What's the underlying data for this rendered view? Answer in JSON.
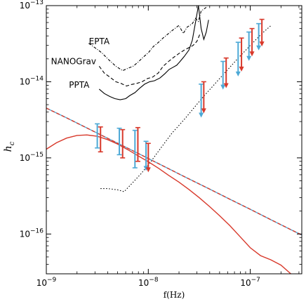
{
  "chart_data": {
    "type": "line",
    "xlabel": "f(Hz)",
    "ylabel": "h_c",
    "xscale": "log",
    "yscale": "log",
    "xlim": [
      1e-09,
      3.2e-07
    ],
    "ylim": [
      3e-17,
      1e-13
    ],
    "x_ticks": [
      {
        "value": 1e-09,
        "mantissa": "10",
        "exp": "−9"
      },
      {
        "value": 1e-08,
        "mantissa": "10",
        "exp": "−8"
      },
      {
        "value": 1e-07,
        "mantissa": "10",
        "exp": "−7"
      }
    ],
    "y_ticks": [
      {
        "value": 1e-16,
        "mantissa": "10",
        "exp": "−16"
      },
      {
        "value": 1e-15,
        "mantissa": "10",
        "exp": "−15"
      },
      {
        "value": 1e-14,
        "mantissa": "10",
        "exp": "−14"
      },
      {
        "value": 1e-13,
        "mantissa": "10",
        "exp": "−13"
      }
    ],
    "grid": false,
    "colors": {
      "blue": "#4da9d6",
      "red": "#d8392b",
      "black": "#000000"
    },
    "annotations": [
      {
        "text": "EPTA",
        "x": 3.3e-09,
        "y": 3.1e-14
      },
      {
        "text": "NANOGrav",
        "x": 1.85e-09,
        "y": 1.7e-14
      },
      {
        "text": "PPTA",
        "x": 2.1e-09,
        "y": 8.3e-15
      }
    ],
    "series": [
      {
        "style": "dash-dot",
        "color": "#000000",
        "x": [
          2.6e-09,
          3e-09,
          3.5e-09,
          4e-09,
          4.8e-09,
          5.6e-09,
          6.3e-09,
          7.1e-09,
          7.9e-09,
          8.9e-09,
          1e-08,
          1.12e-08,
          1.26e-08,
          1.41e-08,
          1.58e-08,
          1.78e-08,
          2e-08,
          2.2e-08,
          2.4e-08,
          2.7e-08,
          2.9e-08,
          3.1e-08,
          3.3e-08,
          3.7e-08
        ],
        "y": [
          3.2e-14,
          2.8e-14,
          2.4e-14,
          2e-14,
          1.6e-14,
          1.4e-14,
          1.5e-14,
          1.6e-14,
          1.8e-14,
          2.1e-14,
          2.4e-14,
          2.9e-14,
          3.3e-14,
          3.8e-14,
          4.3e-14,
          4.9e-14,
          5.5e-14,
          4.3e-14,
          5.2e-14,
          5.8e-14,
          6.8e-14,
          6.2e-14,
          8.5e-14,
          9.5e-14
        ]
      },
      {
        "style": "dashed",
        "color": "#000000",
        "x": [
          3.3e-09,
          3.7e-09,
          4.2e-09,
          4.8e-09,
          5.4e-09,
          6.1e-09,
          6.8e-09,
          7.7e-09,
          8.7e-09,
          9.8e-09,
          1.1e-08,
          1.25e-08,
          1.4e-08,
          1.58e-08,
          1.78e-08,
          2e-08,
          2.25e-08,
          2.5e-08,
          2.75e-08,
          3e-08,
          3.2e-08
        ],
        "y": [
          1.6e-14,
          1.3e-14,
          1.15e-14,
          1e-14,
          9.5e-15,
          8.8e-15,
          9.2e-15,
          9.5e-15,
          1e-14,
          1.1e-14,
          1.15e-14,
          1.3e-14,
          1.6e-14,
          1.85e-14,
          2.1e-14,
          2.35e-14,
          2.6e-14,
          2.8e-14,
          3e-14,
          3.4e-14,
          4.2e-14
        ]
      },
      {
        "style": "solid",
        "color": "#000000",
        "x": [
          3.3e-09,
          3.7e-09,
          4.2e-09,
          4.7e-09,
          5.3e-09,
          6e-09,
          6.6e-09,
          7.4e-09,
          8.2e-09,
          9.2e-09,
          1.03e-08,
          1.15e-08,
          1.3e-08,
          1.45e-08,
          1.6e-08,
          1.75e-08,
          1.9e-08,
          2.05e-08,
          2.25e-08,
          2.5e-08,
          2.7e-08,
          2.9e-08,
          3.1e-08,
          3.3e-08,
          3.5e-08,
          3.7e-08,
          3.9e-08
        ],
        "y": [
          8e-15,
          7e-15,
          6.4e-15,
          6e-15,
          5.8e-15,
          6e-15,
          6.6e-15,
          7.2e-15,
          8.2e-15,
          9.3e-15,
          1e-14,
          1.03e-14,
          1.12e-14,
          1.27e-14,
          1.45e-14,
          1.55e-14,
          1.65e-14,
          1.85e-14,
          2.15e-14,
          2.6e-14,
          3.5e-14,
          6e-14,
          1e-13,
          5e-14,
          3.6e-14,
          4.5e-14,
          6.5e-14
        ]
      },
      {
        "style": "dotted",
        "color": "#000000",
        "x": [
          3.4e-09,
          4e-09,
          5e-09,
          5.8e-09,
          7e-09,
          8.5e-09,
          1.05e-08,
          1.3e-08,
          1.7e-08,
          2.3e-08,
          3.3e-08,
          5e-08,
          7.5e-08,
          1e-07,
          1.3e-07,
          1.6e-07
        ],
        "y": [
          3.95e-16,
          3.95e-16,
          3.8e-16,
          3.6e-16,
          4.7e-16,
          6.2e-16,
          8.8e-16,
          1.3e-15,
          2.1e-15,
          3.3e-15,
          5.9e-15,
          1.1e-14,
          2e-14,
          3e-14,
          4.3e-14,
          5.5e-14
        ]
      },
      {
        "style": "solid",
        "color": "#4da9d6",
        "x": [
          1e-09,
          1.58e-09,
          2.5e-09,
          3.98e-09,
          6.3e-09,
          1e-08,
          1.58e-08,
          2.5e-08,
          3.98e-08,
          6.3e-08,
          1e-07,
          1.58e-07,
          2.5e-07,
          3.2e-07
        ],
        "y": [
          4.5e-15,
          3.35e-15,
          2.47e-15,
          1.81e-15,
          1.34e-15,
          9.8e-16,
          7.2e-16,
          5.3e-16,
          3.9e-16,
          2.87e-16,
          2.11e-16,
          1.55e-16,
          1.14e-16,
          9.7e-17
        ]
      },
      {
        "style": "dashed",
        "color": "#d8392b",
        "x": [
          1e-09,
          1.58e-09,
          2.5e-09,
          3.98e-09,
          6.3e-09,
          1e-08,
          1.58e-08,
          2.5e-08,
          3.98e-08,
          6.3e-08,
          1e-07,
          1.58e-07,
          2.5e-07,
          3.2e-07
        ],
        "y": [
          4.5e-15,
          3.35e-15,
          2.47e-15,
          1.81e-15,
          1.34e-15,
          9.8e-16,
          7.2e-16,
          5.3e-16,
          3.9e-16,
          2.87e-16,
          2.11e-16,
          1.55e-16,
          1.14e-16,
          9.7e-17
        ]
      },
      {
        "style": "solid",
        "color": "#d8392b",
        "x": [
          1e-09,
          1.26e-09,
          1.58e-09,
          2e-09,
          2.5e-09,
          3.16e-09,
          3.98e-09,
          5e-09,
          6.3e-09,
          7.9e-09,
          1e-08,
          1.26e-08,
          1.58e-08,
          2e-08,
          2.5e-08,
          3.16e-08,
          3.98e-08,
          5e-08,
          6.3e-08,
          7.9e-08,
          1e-07,
          1.26e-07,
          1.58e-07,
          2e-07,
          2.5e-07
        ],
        "y": [
          1.3e-15,
          1.58e-15,
          1.82e-15,
          1.97e-15,
          2e-15,
          1.92e-15,
          1.74e-15,
          1.52e-15,
          1.28e-15,
          1.07e-15,
          8.9e-16,
          7.3e-16,
          5.9e-16,
          4.8e-16,
          3.85e-16,
          3e-16,
          2.3e-16,
          1.74e-16,
          1.29e-16,
          9.3e-17,
          6.6e-17,
          5.2e-17,
          4.6e-17,
          3.9e-17,
          3e-17
        ]
      }
    ],
    "error_bars": [
      {
        "color": "#4da9d6",
        "x": 3.16e-09,
        "y_low": 1.35e-15,
        "y_high": 2.8e-15,
        "limit": false
      },
      {
        "color": "#d8392b",
        "x": 3.4e-09,
        "y_low": 1.2e-15,
        "y_high": 2.55e-15,
        "limit": false
      },
      {
        "color": "#4da9d6",
        "x": 5.2e-09,
        "y_low": 1.1e-15,
        "y_high": 2.45e-15,
        "limit": false
      },
      {
        "color": "#d8392b",
        "x": 5.6e-09,
        "y_low": 1e-15,
        "y_high": 2.35e-15,
        "limit": false
      },
      {
        "color": "#4da9d6",
        "x": 7.4e-09,
        "y_low": 7.4e-16,
        "y_high": 2.3e-15,
        "limit": false
      },
      {
        "color": "#d8392b",
        "x": 7.9e-09,
        "y_low": 9e-16,
        "y_high": 2.5e-15,
        "limit": false
      },
      {
        "color": "#4da9d6",
        "x": 9.5e-09,
        "y_low": 7.2e-16,
        "y_high": 1.65e-15,
        "limit": true
      },
      {
        "color": "#d8392b",
        "x": 1e-08,
        "y_low": 6.9e-16,
        "y_high": 1.55e-15,
        "limit": true
      },
      {
        "color": "#4da9d6",
        "x": 3.3e-08,
        "y_low": 3.6e-15,
        "y_high": 9.3e-15,
        "limit": true
      },
      {
        "color": "#d8392b",
        "x": 3.5e-08,
        "y_low": 4.1e-15,
        "y_high": 1e-14,
        "limit": true
      },
      {
        "color": "#4da9d6",
        "x": 5.4e-08,
        "y_low": 8.4e-15,
        "y_high": 1.85e-14,
        "limit": true
      },
      {
        "color": "#d8392b",
        "x": 5.8e-08,
        "y_low": 8.8e-15,
        "y_high": 2.05e-14,
        "limit": true
      },
      {
        "color": "#4da9d6",
        "x": 7.6e-08,
        "y_low": 1.25e-14,
        "y_high": 3.3e-14,
        "limit": true
      },
      {
        "color": "#d8392b",
        "x": 8.2e-08,
        "y_low": 1.45e-14,
        "y_high": 3.75e-14,
        "limit": true
      },
      {
        "color": "#4da9d6",
        "x": 9.7e-08,
        "y_low": 2e-14,
        "y_high": 4.5e-14,
        "limit": true
      },
      {
        "color": "#d8392b",
        "x": 1.04e-07,
        "y_low": 2.3e-14,
        "y_high": 5e-14,
        "limit": true
      },
      {
        "color": "#4da9d6",
        "x": 1.21e-07,
        "y_low": 2.75e-14,
        "y_high": 5.8e-14,
        "limit": true
      },
      {
        "color": "#d8392b",
        "x": 1.3e-07,
        "y_low": 3.1e-14,
        "y_high": 6.6e-14,
        "limit": true
      }
    ]
  }
}
